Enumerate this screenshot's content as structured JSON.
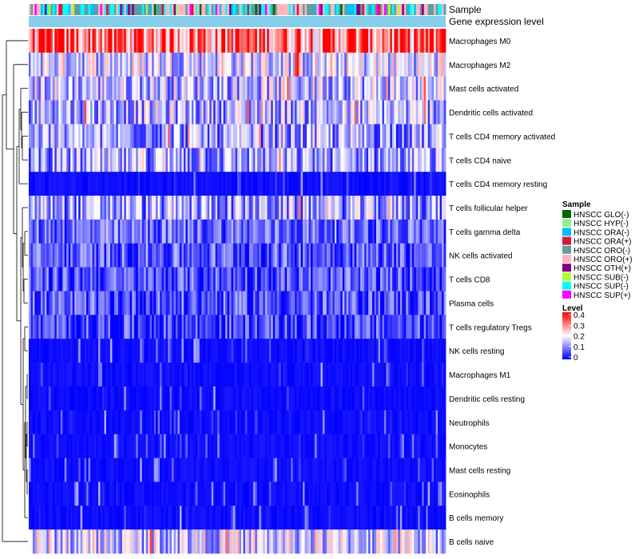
{
  "chart_data": {
    "type": "heatmap",
    "title": "",
    "annotations": {
      "sample_label": "Sample",
      "level_track_label": "Gene expression level"
    },
    "n_columns": 210,
    "rows": [
      {
        "label": "Macrophages M0",
        "mean": 0.32
      },
      {
        "label": "Macrophages M2",
        "mean": 0.15
      },
      {
        "label": "Mast cells activated",
        "mean": 0.13
      },
      {
        "label": "Dendritic cells activated",
        "mean": 0.12
      },
      {
        "label": "T cells CD4 memory activated",
        "mean": 0.1
      },
      {
        "label": "T cells CD4 naive",
        "mean": 0.1
      },
      {
        "label": "T cells CD4 memory resting",
        "mean": 0.05
      },
      {
        "label": "T cells follicular helper",
        "mean": 0.1
      },
      {
        "label": "T cells gamma delta",
        "mean": 0.09
      },
      {
        "label": "NK cells activated",
        "mean": 0.08
      },
      {
        "label": "T cells CD8",
        "mean": 0.07
      },
      {
        "label": "Plasma cells",
        "mean": 0.07
      },
      {
        "label": "T cells regulatory  Tregs",
        "mean": 0.06
      },
      {
        "label": "NK cells resting",
        "mean": 0.05
      },
      {
        "label": "Macrophages M1",
        "mean": 0.04
      },
      {
        "label": "Dendritic cells resting",
        "mean": 0.03
      },
      {
        "label": "Neutrophils",
        "mean": 0.03
      },
      {
        "label": "Monocytes",
        "mean": 0.025
      },
      {
        "label": "Mast cells resting",
        "mean": 0.025
      },
      {
        "label": "Eosinophils",
        "mean": 0.02
      },
      {
        "label": "B cells memory",
        "mean": 0.02
      },
      {
        "label": "B cells naive",
        "mean": 0.14
      }
    ],
    "legend_sample": {
      "title": "Sample",
      "items": [
        {
          "label": "HNSCC GLO(-)",
          "color": "#006400"
        },
        {
          "label": "HNSCC HYP(-)",
          "color": "#90EE90"
        },
        {
          "label": "HNSCC ORA(-)",
          "color": "#00BFFF"
        },
        {
          "label": "HNSCC ORA(+)",
          "color": "#DC143C"
        },
        {
          "label": "HNSCC ORO(-)",
          "color": "#5F9EA0"
        },
        {
          "label": "HNSCC ORO(+)",
          "color": "#FFB6C1"
        },
        {
          "label": "HNSCC OTH(+)",
          "color": "#800080"
        },
        {
          "label": "HNSCC SUB(-)",
          "color": "#ADFF2F"
        },
        {
          "label": "HNSCC SUP(-)",
          "color": "#00FFFF"
        },
        {
          "label": "HNSCC SUP(+)",
          "color": "#FF00FF"
        }
      ]
    },
    "legend_level": {
      "title": "Level",
      "ticks": [
        "0.4",
        "0.3",
        "0.2",
        "0.1",
        "0"
      ],
      "range": [
        0,
        0.4
      ],
      "colors": {
        "low": "#0000FF",
        "mid": "#FFFFFF",
        "high": "#FF0000"
      }
    },
    "level_track_color": "#87CEEB"
  }
}
